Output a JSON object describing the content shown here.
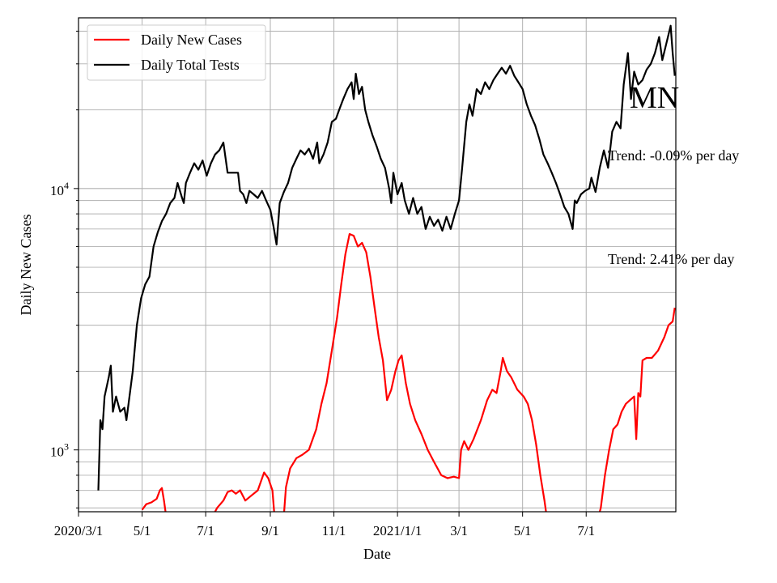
{
  "chart_data": {
    "type": "line",
    "xlabel": "Date",
    "ylabel": "Daily New Cases",
    "y_scale": "log",
    "ylim": [
      580,
      45000
    ],
    "xlim": [
      "2020-03-01",
      "2021-09-25"
    ],
    "grid": true,
    "legend_position": "top-left",
    "x_ticks": [
      {
        "date": "2020-03-01",
        "label": "2020/3/1"
      },
      {
        "date": "2020-05-01",
        "label": "5/1"
      },
      {
        "date": "2020-07-01",
        "label": "7/1"
      },
      {
        "date": "2020-09-01",
        "label": "9/1"
      },
      {
        "date": "2020-11-01",
        "label": "11/1"
      },
      {
        "date": "2021-01-01",
        "label": "2021/1/1"
      },
      {
        "date": "2021-03-01",
        "label": "3/1"
      },
      {
        "date": "2021-05-01",
        "label": "5/1"
      },
      {
        "date": "2021-07-01",
        "label": "7/1"
      }
    ],
    "y_ticks": [
      {
        "value": 1000,
        "label": "10",
        "exponent": "3"
      },
      {
        "value": 10000,
        "label": "10",
        "exponent": "4"
      }
    ],
    "series": [
      {
        "name": "Daily New Cases",
        "color": "#ff0000",
        "points": [
          [
            "2020-05-01",
            590
          ],
          [
            "2020-05-05",
            620
          ],
          [
            "2020-05-10",
            630
          ],
          [
            "2020-05-15",
            650
          ],
          [
            "2020-05-18",
            700
          ],
          [
            "2020-05-20",
            715
          ],
          [
            "2020-05-22",
            640
          ],
          [
            "2020-05-24",
            560
          ],
          [
            "2020-07-08",
            560
          ],
          [
            "2020-07-12",
            600
          ],
          [
            "2020-07-18",
            640
          ],
          [
            "2020-07-22",
            690
          ],
          [
            "2020-07-26",
            700
          ],
          [
            "2020-07-30",
            680
          ],
          [
            "2020-08-03",
            700
          ],
          [
            "2020-08-08",
            640
          ],
          [
            "2020-08-14",
            670
          ],
          [
            "2020-08-20",
            700
          ],
          [
            "2020-08-26",
            820
          ],
          [
            "2020-08-30",
            780
          ],
          [
            "2020-09-03",
            700
          ],
          [
            "2020-09-05",
            560
          ],
          [
            "2020-09-14",
            560
          ],
          [
            "2020-09-16",
            720
          ],
          [
            "2020-09-20",
            850
          ],
          [
            "2020-09-26",
            930
          ],
          [
            "2020-10-02",
            960
          ],
          [
            "2020-10-08",
            1000
          ],
          [
            "2020-10-15",
            1200
          ],
          [
            "2020-10-20",
            1500
          ],
          [
            "2020-10-25",
            1800
          ],
          [
            "2020-10-30",
            2400
          ],
          [
            "2020-11-04",
            3200
          ],
          [
            "2020-11-08",
            4300
          ],
          [
            "2020-11-12",
            5600
          ],
          [
            "2020-11-16",
            6700
          ],
          [
            "2020-11-20",
            6600
          ],
          [
            "2020-11-24",
            6000
          ],
          [
            "2020-11-28",
            6200
          ],
          [
            "2020-12-02",
            5700
          ],
          [
            "2020-12-06",
            4600
          ],
          [
            "2020-12-10",
            3500
          ],
          [
            "2020-12-14",
            2700
          ],
          [
            "2020-12-18",
            2200
          ],
          [
            "2020-12-22",
            1550
          ],
          [
            "2020-12-26",
            1700
          ],
          [
            "2020-12-30",
            2000
          ],
          [
            "2021-01-02",
            2200
          ],
          [
            "2021-01-05",
            2300
          ],
          [
            "2021-01-09",
            1800
          ],
          [
            "2021-01-13",
            1500
          ],
          [
            "2021-01-18",
            1300
          ],
          [
            "2021-01-24",
            1150
          ],
          [
            "2021-01-30",
            1000
          ],
          [
            "2021-02-05",
            900
          ],
          [
            "2021-02-12",
            800
          ],
          [
            "2021-02-18",
            780
          ],
          [
            "2021-02-24",
            790
          ],
          [
            "2021-03-01",
            780
          ],
          [
            "2021-03-03",
            1000
          ],
          [
            "2021-03-06",
            1080
          ],
          [
            "2021-03-10",
            1000
          ],
          [
            "2021-03-15",
            1100
          ],
          [
            "2021-03-22",
            1300
          ],
          [
            "2021-03-28",
            1550
          ],
          [
            "2021-04-02",
            1700
          ],
          [
            "2021-04-06",
            1650
          ],
          [
            "2021-04-10",
            2000
          ],
          [
            "2021-04-12",
            2250
          ],
          [
            "2021-04-16",
            2000
          ],
          [
            "2021-04-20",
            1900
          ],
          [
            "2021-04-26",
            1700
          ],
          [
            "2021-05-02",
            1600
          ],
          [
            "2021-05-06",
            1500
          ],
          [
            "2021-05-10",
            1300
          ],
          [
            "2021-05-14",
            1050
          ],
          [
            "2021-05-18",
            800
          ],
          [
            "2021-05-22",
            640
          ],
          [
            "2021-05-24",
            560
          ],
          [
            "2021-07-13",
            560
          ],
          [
            "2021-07-15",
            600
          ],
          [
            "2021-07-19",
            800
          ],
          [
            "2021-07-23",
            1000
          ],
          [
            "2021-07-27",
            1200
          ],
          [
            "2021-07-31",
            1250
          ],
          [
            "2021-08-04",
            1400
          ],
          [
            "2021-08-08",
            1500
          ],
          [
            "2021-08-12",
            1550
          ],
          [
            "2021-08-16",
            1600
          ],
          [
            "2021-08-18",
            1100
          ],
          [
            "2021-08-20",
            1650
          ],
          [
            "2021-08-22",
            1600
          ],
          [
            "2021-08-24",
            2200
          ],
          [
            "2021-08-28",
            2250
          ],
          [
            "2021-09-02",
            2250
          ],
          [
            "2021-09-08",
            2400
          ],
          [
            "2021-09-14",
            2700
          ],
          [
            "2021-09-18",
            3000
          ],
          [
            "2021-09-22",
            3100
          ],
          [
            "2021-09-24",
            3500
          ]
        ]
      },
      {
        "name": "Daily Total Tests",
        "color": "#000000",
        "points": [
          [
            "2020-03-20",
            700
          ],
          [
            "2020-03-22",
            1300
          ],
          [
            "2020-03-24",
            1200
          ],
          [
            "2020-03-26",
            1600
          ],
          [
            "2020-03-30",
            1900
          ],
          [
            "2020-04-01",
            2100
          ],
          [
            "2020-04-03",
            1400
          ],
          [
            "2020-04-06",
            1600
          ],
          [
            "2020-04-10",
            1400
          ],
          [
            "2020-04-14",
            1450
          ],
          [
            "2020-04-16",
            1300
          ],
          [
            "2020-04-18",
            1500
          ],
          [
            "2020-04-22",
            2000
          ],
          [
            "2020-04-26",
            3000
          ],
          [
            "2020-04-30",
            3800
          ],
          [
            "2020-05-04",
            4300
          ],
          [
            "2020-05-08",
            4600
          ],
          [
            "2020-05-12",
            6000
          ],
          [
            "2020-05-16",
            6800
          ],
          [
            "2020-05-20",
            7500
          ],
          [
            "2020-05-24",
            8000
          ],
          [
            "2020-05-28",
            8800
          ],
          [
            "2020-06-01",
            9200
          ],
          [
            "2020-06-04",
            10500
          ],
          [
            "2020-06-08",
            9300
          ],
          [
            "2020-06-10",
            8800
          ],
          [
            "2020-06-12",
            10500
          ],
          [
            "2020-06-16",
            11500
          ],
          [
            "2020-06-20",
            12500
          ],
          [
            "2020-06-24",
            11800
          ],
          [
            "2020-06-28",
            12800
          ],
          [
            "2020-07-02",
            11200
          ],
          [
            "2020-07-06",
            12500
          ],
          [
            "2020-07-10",
            13500
          ],
          [
            "2020-07-14",
            14000
          ],
          [
            "2020-07-18",
            15000
          ],
          [
            "2020-07-22",
            11500
          ],
          [
            "2020-07-28",
            11500
          ],
          [
            "2020-08-01",
            11500
          ],
          [
            "2020-08-03",
            9800
          ],
          [
            "2020-08-06",
            9500
          ],
          [
            "2020-08-09",
            8800
          ],
          [
            "2020-08-12",
            9800
          ],
          [
            "2020-08-16",
            9500
          ],
          [
            "2020-08-20",
            9200
          ],
          [
            "2020-08-24",
            9800
          ],
          [
            "2020-08-28",
            9000
          ],
          [
            "2020-09-01",
            8300
          ],
          [
            "2020-09-04",
            7200
          ],
          [
            "2020-09-07",
            6100
          ],
          [
            "2020-09-10",
            8800
          ],
          [
            "2020-09-14",
            9700
          ],
          [
            "2020-09-18",
            10500
          ],
          [
            "2020-09-22",
            12000
          ],
          [
            "2020-09-26",
            13000
          ],
          [
            "2020-09-30",
            14000
          ],
          [
            "2020-10-04",
            13500
          ],
          [
            "2020-10-08",
            14200
          ],
          [
            "2020-10-12",
            13000
          ],
          [
            "2020-10-16",
            15000
          ],
          [
            "2020-10-18",
            12500
          ],
          [
            "2020-10-22",
            13500
          ],
          [
            "2020-10-26",
            15000
          ],
          [
            "2020-10-30",
            18000
          ],
          [
            "2020-11-03",
            18500
          ],
          [
            "2020-11-06",
            20000
          ],
          [
            "2020-11-10",
            22000
          ],
          [
            "2020-11-14",
            24000
          ],
          [
            "2020-11-18",
            25500
          ],
          [
            "2020-11-20",
            22000
          ],
          [
            "2020-11-22",
            27500
          ],
          [
            "2020-11-25",
            23000
          ],
          [
            "2020-11-28",
            24500
          ],
          [
            "2020-12-01",
            20000
          ],
          [
            "2020-12-04",
            18000
          ],
          [
            "2020-12-08",
            16000
          ],
          [
            "2020-12-12",
            14500
          ],
          [
            "2020-12-16",
            13000
          ],
          [
            "2020-12-20",
            12000
          ],
          [
            "2020-12-24",
            10000
          ],
          [
            "2020-12-26",
            8800
          ],
          [
            "2020-12-28",
            11500
          ],
          [
            "2021-01-01",
            9500
          ],
          [
            "2021-01-05",
            10500
          ],
          [
            "2021-01-08",
            9000
          ],
          [
            "2021-01-12",
            8000
          ],
          [
            "2021-01-16",
            9200
          ],
          [
            "2021-01-20",
            8000
          ],
          [
            "2021-01-24",
            8500
          ],
          [
            "2021-01-28",
            7000
          ],
          [
            "2021-02-01",
            7800
          ],
          [
            "2021-02-05",
            7200
          ],
          [
            "2021-02-09",
            7600
          ],
          [
            "2021-02-13",
            6900
          ],
          [
            "2021-02-17",
            7800
          ],
          [
            "2021-02-21",
            7000
          ],
          [
            "2021-02-25",
            8000
          ],
          [
            "2021-03-01",
            9000
          ],
          [
            "2021-03-04",
            12000
          ],
          [
            "2021-03-08",
            18000
          ],
          [
            "2021-03-11",
            21000
          ],
          [
            "2021-03-14",
            19000
          ],
          [
            "2021-03-18",
            24000
          ],
          [
            "2021-03-22",
            23000
          ],
          [
            "2021-03-26",
            25500
          ],
          [
            "2021-03-30",
            24000
          ],
          [
            "2021-04-03",
            26000
          ],
          [
            "2021-04-07",
            27500
          ],
          [
            "2021-04-11",
            29000
          ],
          [
            "2021-04-15",
            27500
          ],
          [
            "2021-04-19",
            29500
          ],
          [
            "2021-04-23",
            27000
          ],
          [
            "2021-04-27",
            25500
          ],
          [
            "2021-05-01",
            24000
          ],
          [
            "2021-05-05",
            21000
          ],
          [
            "2021-05-09",
            19000
          ],
          [
            "2021-05-13",
            17500
          ],
          [
            "2021-05-17",
            15500
          ],
          [
            "2021-05-21",
            13500
          ],
          [
            "2021-05-25",
            12500
          ],
          [
            "2021-05-29",
            11500
          ],
          [
            "2021-06-02",
            10500
          ],
          [
            "2021-06-06",
            9500
          ],
          [
            "2021-06-10",
            8500
          ],
          [
            "2021-06-14",
            8000
          ],
          [
            "2021-06-18",
            7000
          ],
          [
            "2021-06-20",
            9000
          ],
          [
            "2021-06-22",
            8800
          ],
          [
            "2021-06-26",
            9500
          ],
          [
            "2021-06-30",
            9800
          ],
          [
            "2021-07-04",
            10000
          ],
          [
            "2021-07-06",
            11000
          ],
          [
            "2021-07-10",
            9700
          ],
          [
            "2021-07-14",
            12000
          ],
          [
            "2021-07-18",
            14000
          ],
          [
            "2021-07-22",
            12000
          ],
          [
            "2021-07-26",
            16500
          ],
          [
            "2021-07-30",
            18000
          ],
          [
            "2021-08-03",
            17000
          ],
          [
            "2021-08-06",
            25000
          ],
          [
            "2021-08-10",
            33000
          ],
          [
            "2021-08-13",
            22000
          ],
          [
            "2021-08-16",
            28000
          ],
          [
            "2021-08-20",
            25000
          ],
          [
            "2021-08-24",
            26000
          ],
          [
            "2021-08-28",
            28500
          ],
          [
            "2021-09-01",
            30000
          ],
          [
            "2021-09-05",
            33000
          ],
          [
            "2021-09-09",
            38000
          ],
          [
            "2021-09-12",
            31000
          ],
          [
            "2021-09-16",
            36000
          ],
          [
            "2021-09-20",
            42000
          ],
          [
            "2021-09-22",
            33000
          ],
          [
            "2021-09-24",
            27000
          ]
        ]
      }
    ],
    "annotations": [
      {
        "text": "MN",
        "role": "state-label"
      },
      {
        "text": "Trend: -0.09% per day",
        "role": "tests-trend"
      },
      {
        "text": "Trend: 2.41% per day",
        "role": "cases-trend"
      }
    ]
  },
  "legend": {
    "items": [
      {
        "label": "Daily New Cases",
        "color": "#ff0000"
      },
      {
        "label": "Daily Total Tests",
        "color": "#000000"
      }
    ]
  }
}
